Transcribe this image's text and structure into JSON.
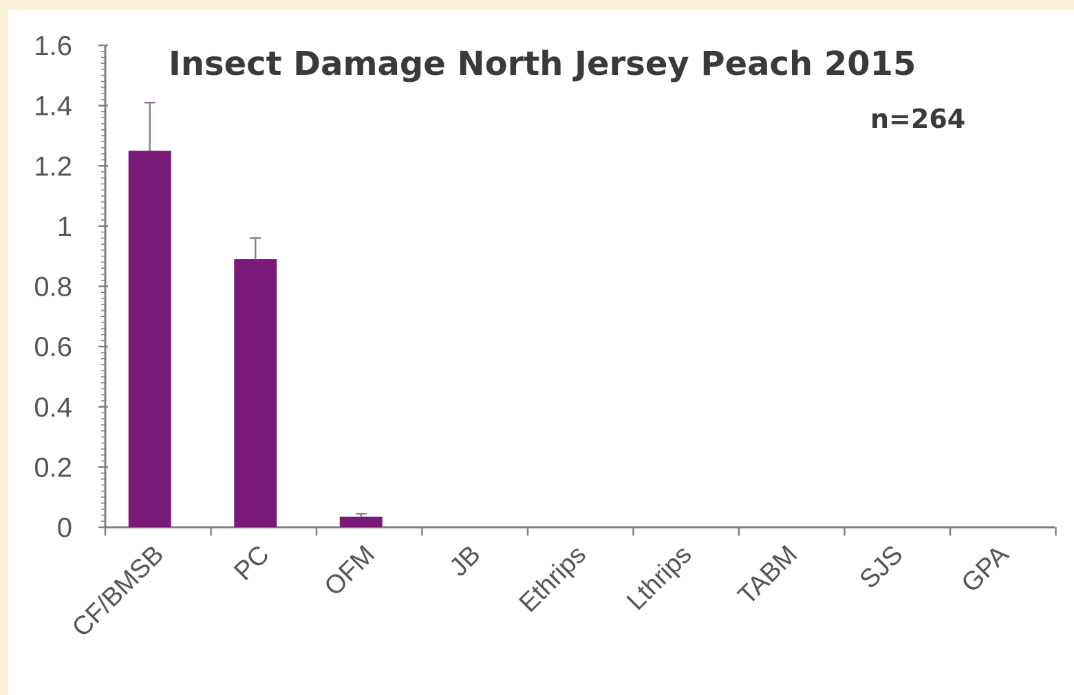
{
  "chart_data": {
    "type": "bar",
    "title": "Insect Damage North Jersey Peach 2015",
    "annotation": "n=264",
    "xlabel": "",
    "ylabel": "",
    "ylim": [
      0,
      1.6
    ],
    "yticks": [
      "0",
      "0.2",
      "0.4",
      "0.6",
      "0.8",
      "1",
      "1.2",
      "1.4",
      "1.6"
    ],
    "categories": [
      "CF/BMSB",
      "PC",
      "OFM",
      "JB",
      "Ethrips",
      "Lthrips",
      "TABM",
      "SJS",
      "GPA"
    ],
    "values": [
      1.25,
      0.89,
      0.035,
      0,
      0,
      0,
      0,
      0,
      0
    ],
    "error_upper": [
      0.16,
      0.07,
      0.01,
      0,
      0,
      0,
      0,
      0,
      0
    ],
    "grid": false,
    "legend": "none",
    "colors": {
      "bar": "#7a1a78",
      "axis": "#7f7f7f",
      "error_bar": "#9a7a9a"
    }
  }
}
